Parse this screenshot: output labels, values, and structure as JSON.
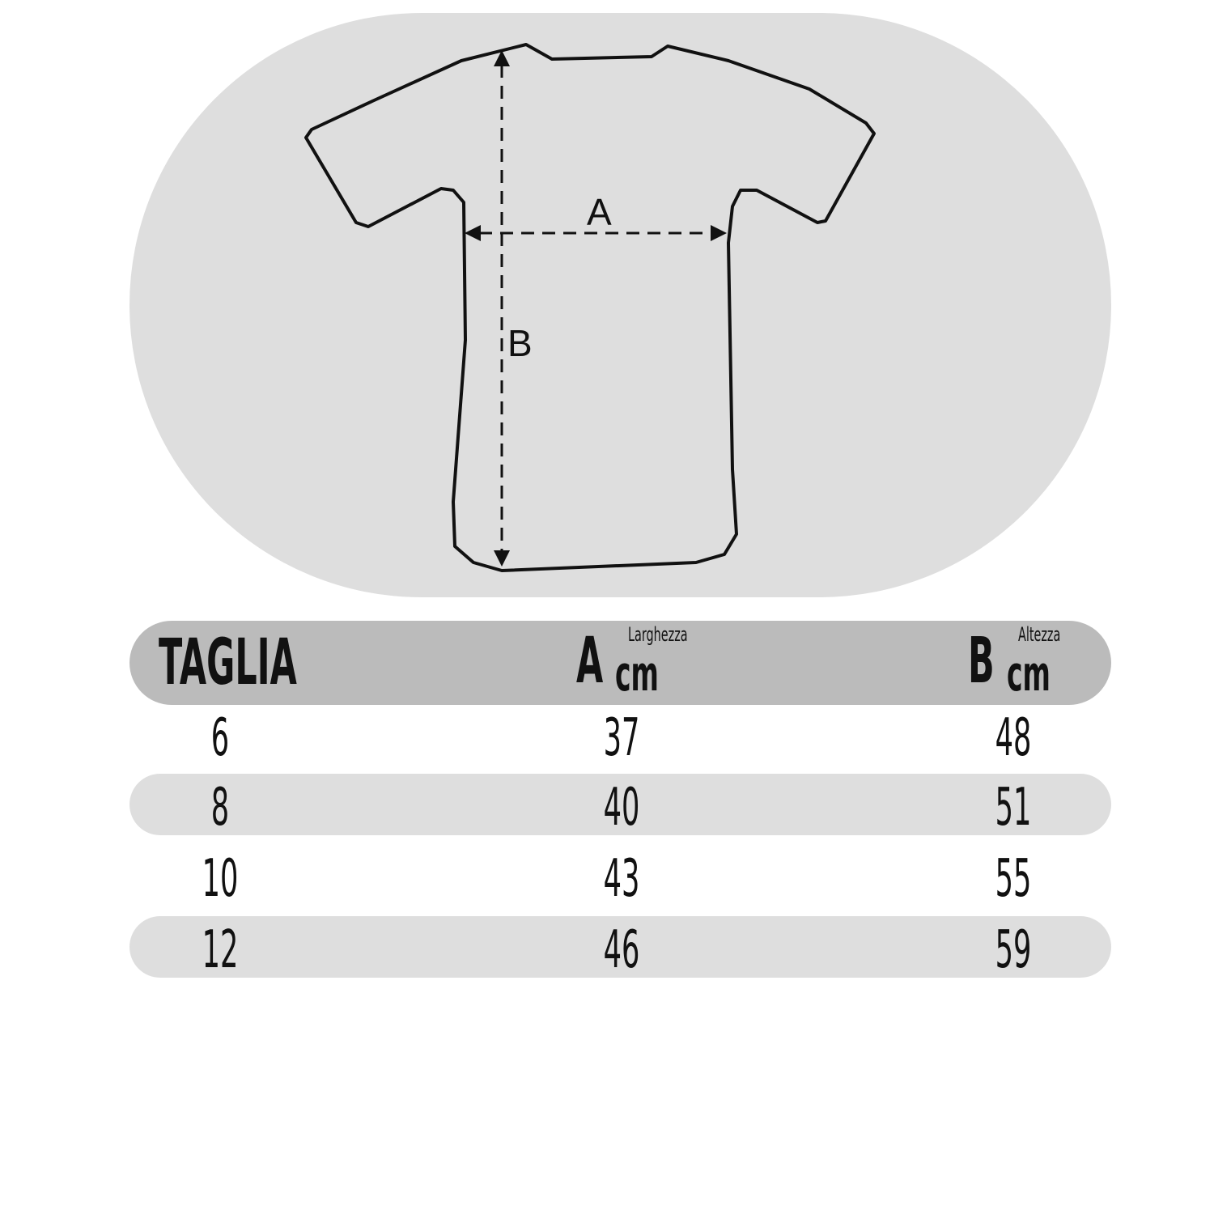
{
  "diagram": {
    "label_a": "A",
    "label_b": "B"
  },
  "table": {
    "headers": {
      "size": "TAGLIA",
      "a_letter": "A",
      "a_sup": "Larghezza",
      "a_unit": "cm",
      "b_letter": "B",
      "b_sup": "Altezza",
      "b_unit": "cm"
    },
    "rows": [
      {
        "size": "6",
        "a": "37",
        "b": "48"
      },
      {
        "size": "8",
        "a": "40",
        "b": "51"
      },
      {
        "size": "10",
        "a": "43",
        "b": "55"
      },
      {
        "size": "12",
        "a": "46",
        "b": "59"
      }
    ]
  },
  "colors": {
    "oval": "#dedede",
    "header": "#bbbbbb",
    "stripe": "#dedede",
    "ink": "#111111"
  }
}
